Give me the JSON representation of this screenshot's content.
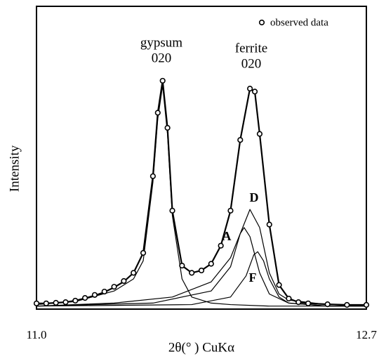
{
  "chart_data": {
    "type": "line",
    "xlabel": "2θ(°  ) CuKα",
    "ylabel": "Intensity",
    "xlim": [
      11.0,
      12.7
    ],
    "xticks": [
      {
        "value": 11.0,
        "label": "11.0"
      },
      {
        "value": 12.7,
        "label": "12.7"
      }
    ],
    "ylim": [
      0,
      100
    ],
    "grid": false,
    "legend": "upper right",
    "annotations": [
      "gypsum",
      "020",
      "ferrite",
      "020"
    ],
    "scatter": {
      "name": "observed data",
      "color": "#000000",
      "x": [
        11.0,
        11.05,
        11.1,
        11.15,
        11.2,
        11.25,
        11.3,
        11.35,
        11.4,
        11.45,
        11.5,
        11.55,
        11.6,
        11.625,
        11.65,
        11.675,
        11.7,
        11.75,
        11.8,
        11.85,
        11.9,
        11.95,
        12.0,
        12.05,
        12.1,
        12.125,
        12.15,
        12.2,
        12.25,
        12.3,
        12.35,
        12.4,
        12.5,
        12.6,
        12.7
      ],
      "values": [
        1.9,
        1.9,
        2.1,
        2.3,
        2.8,
        3.7,
        4.7,
        5.8,
        7.4,
        9.3,
        12,
        18.6,
        44,
        65,
        75.6,
        60,
        32.6,
        14.4,
        12,
        12.8,
        15,
        21,
        32.6,
        56,
        73,
        72,
        58,
        28,
        8,
        3.5,
        2.3,
        1.9,
        1.6,
        1.4,
        1.4
      ]
    },
    "series": [
      {
        "color": "#000000",
        "width": 2.2,
        "x": [
          11.0,
          11.05,
          11.1,
          11.15,
          11.2,
          11.25,
          11.3,
          11.35,
          11.4,
          11.45,
          11.5,
          11.55,
          11.6,
          11.625,
          11.65,
          11.675,
          11.7,
          11.75,
          11.8,
          11.85,
          11.9,
          11.95,
          12.0,
          12.05,
          12.1,
          12.125,
          12.15,
          12.2,
          12.25,
          12.3,
          12.35,
          12.4,
          12.5,
          12.6,
          12.7
        ],
        "values": [
          1.9,
          1.9,
          2.1,
          2.3,
          2.8,
          3.6,
          4.5,
          5.6,
          7.2,
          9.1,
          12,
          18.6,
          44,
          65,
          75.6,
          60,
          32.6,
          14.4,
          12,
          12.8,
          15,
          21,
          32.6,
          56,
          73,
          72,
          58,
          28,
          8,
          3.5,
          2.3,
          1.9,
          1.6,
          1.4,
          1.4
        ]
      },
      {
        "color": "#000000",
        "width": 1.2,
        "x": [
          11.0,
          11.2,
          11.4,
          11.5,
          11.55,
          11.6,
          11.625,
          11.65,
          11.675,
          11.7,
          11.75,
          11.8,
          11.9,
          12.0,
          12.2,
          12.7
        ],
        "values": [
          1.5,
          2.5,
          6,
          10,
          16,
          42,
          63,
          74,
          58,
          31,
          10,
          4,
          2,
          1.5,
          1,
          1
        ]
      },
      {
        "name": "A",
        "color": "#000000",
        "width": 1.2,
        "x": [
          11.0,
          11.4,
          11.7,
          11.9,
          12.0,
          12.05,
          12.07,
          12.1,
          12.15,
          12.2,
          12.3,
          12.5,
          12.7
        ],
        "values": [
          1,
          2,
          4,
          9,
          17,
          25,
          27,
          24,
          12,
          5,
          2,
          1,
          1
        ]
      },
      {
        "name": "D",
        "color": "#000000",
        "width": 1.2,
        "x": [
          11.0,
          11.6,
          11.9,
          12.0,
          12.05,
          12.1,
          12.15,
          12.2,
          12.25,
          12.3,
          12.5,
          12.7
        ],
        "values": [
          1,
          2,
          6,
          14,
          25,
          33,
          27,
          12,
          5,
          3,
          1.5,
          1
        ]
      },
      {
        "name": "F",
        "color": "#000000",
        "width": 1.2,
        "x": [
          11.0,
          11.8,
          12.0,
          12.08,
          12.12,
          12.14,
          12.17,
          12.2,
          12.25,
          12.3,
          12.5,
          12.7
        ],
        "values": [
          1,
          1.5,
          4,
          11,
          18,
          19,
          16,
          10,
          4,
          2,
          1,
          1
        ]
      }
    ]
  }
}
